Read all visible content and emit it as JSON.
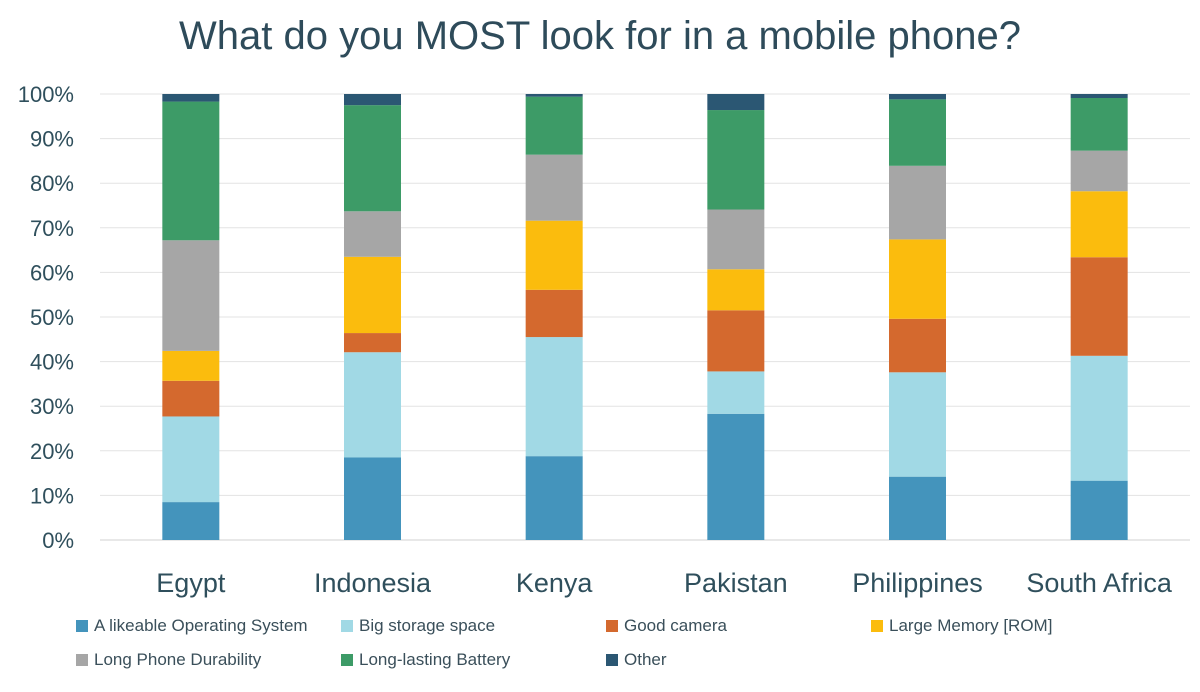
{
  "chart_data": {
    "type": "bar",
    "stacked": true,
    "percent": true,
    "title": "What do you MOST look for in a mobile phone?",
    "categories": [
      "Egypt",
      "Indonesia",
      "Kenya",
      "Pakistan",
      "Philippines",
      "South Africa"
    ],
    "y_ticks": [
      "0%",
      "10%",
      "20%",
      "30%",
      "40%",
      "50%",
      "60%",
      "70%",
      "80%",
      "90%",
      "100%"
    ],
    "ylim": [
      0,
      100
    ],
    "grid": true,
    "legend_position": "bottom",
    "series": [
      {
        "name": "A likeable Operating System",
        "color": "#4494bc",
        "values": [
          8.5,
          18.5,
          18.8,
          28.3,
          14.2,
          13.3
        ]
      },
      {
        "name": "Big storage space",
        "color": "#a1d9e5",
        "values": [
          19.2,
          23.6,
          26.7,
          9.5,
          23.4,
          28.0
        ]
      },
      {
        "name": "Good camera",
        "color": "#d4692e",
        "values": [
          8.0,
          4.3,
          10.6,
          13.7,
          12.0,
          22.1
        ]
      },
      {
        "name": "Large Memory [ROM]",
        "color": "#fbbc0d",
        "values": [
          6.7,
          17.1,
          15.5,
          9.2,
          17.8,
          14.8
        ]
      },
      {
        "name": "Long Phone Durability",
        "color": "#a6a6a6",
        "values": [
          24.8,
          10.2,
          14.8,
          13.4,
          16.5,
          9.1
        ]
      },
      {
        "name": "Long-lasting Battery",
        "color": "#3d9b67",
        "values": [
          31.1,
          23.8,
          13.0,
          22.3,
          14.9,
          11.8
        ]
      },
      {
        "name": "Other",
        "color": "#2b5773",
        "values": [
          1.7,
          2.5,
          0.6,
          3.6,
          1.2,
          0.9
        ]
      }
    ]
  }
}
